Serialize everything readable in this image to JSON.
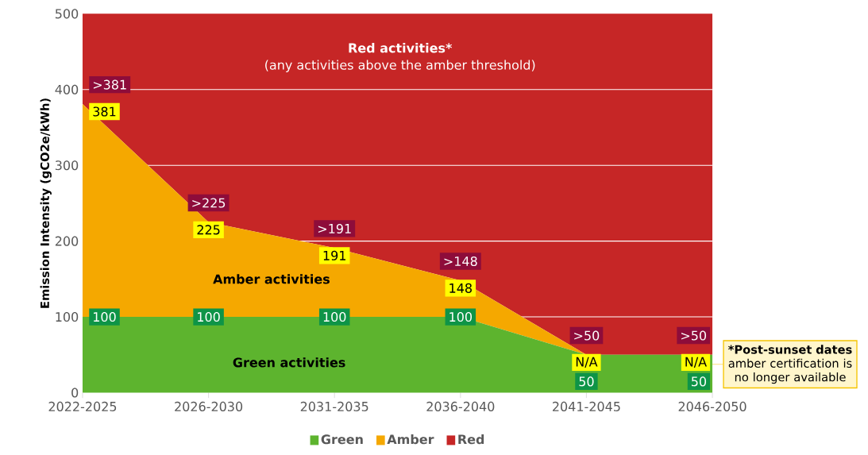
{
  "chart_data": {
    "type": "area",
    "stacked": true,
    "ylabel": "Emission Intensity (gCO2e/kWh)",
    "categories": [
      "2022-2025",
      "2026-2030",
      "2031-2035",
      "2036-2040",
      "2041-2045",
      "2046-2050"
    ],
    "series": [
      {
        "name": "Green",
        "color": "#5db42e",
        "values": [
          100,
          100,
          100,
          100,
          50,
          50
        ],
        "value_labels": [
          "100",
          "100",
          "100",
          "100",
          "50",
          "50"
        ]
      },
      {
        "name": "Amber",
        "color": "#f5a800",
        "values": [
          281,
          125,
          91,
          48,
          0,
          0
        ]
      },
      {
        "name": "Red",
        "color": "#c62626",
        "values": [
          119,
          275,
          309,
          352,
          450,
          450
        ]
      }
    ],
    "ylim": [
      0,
      500
    ],
    "yticks": [
      0,
      100,
      200,
      300,
      400,
      500
    ],
    "grid": "y",
    "legend": "bottom",
    "annotations": [
      "Red activities*",
      "(any activities above the amber threshold)",
      "Amber activities",
      "Green activities",
      "*Post-sunset dates",
      "amber certification is no longer available",
      {
        "text": ">381",
        "x": "2022-2025",
        "y": 381
      },
      {
        "text": "381",
        "x": "2022-2025",
        "y": 381
      },
      {
        "text": ">225",
        "x": "2026-2030",
        "y": 225
      },
      {
        "text": "225",
        "x": "2026-2030",
        "y": 225
      },
      {
        "text": ">191",
        "x": "2031-2035",
        "y": 191
      },
      {
        "text": "191",
        "x": "2031-2035",
        "y": 191
      },
      {
        "text": ">148",
        "x": "2036-2040",
        "y": 148
      },
      {
        "text": "148",
        "x": "2036-2040",
        "y": 148
      },
      {
        "text": ">50",
        "x": "2041-2045",
        "y": 50
      },
      {
        "text": "N/A",
        "x": "2041-2045",
        "y": 50
      },
      {
        "text": ">50",
        "x": "2046-2050",
        "y": 50
      },
      {
        "text": "N/A",
        "x": "2046-2050",
        "y": 50
      }
    ]
  }
}
